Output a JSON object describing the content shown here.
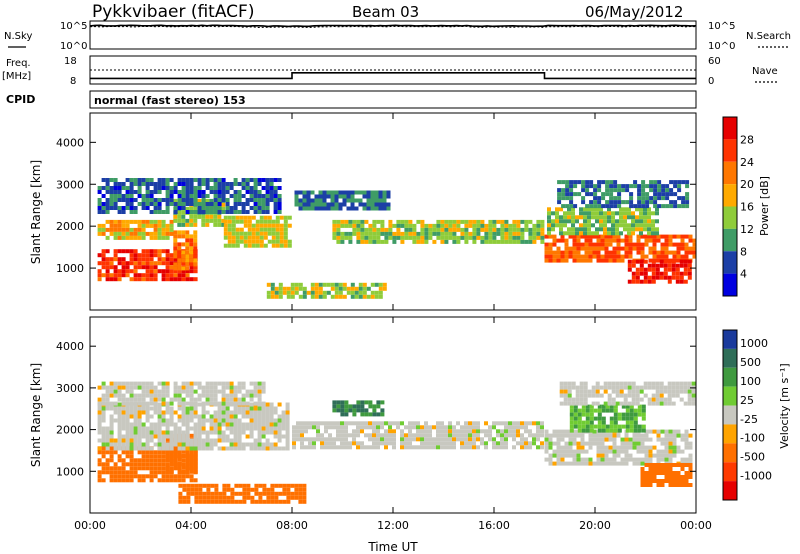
{
  "header": {
    "station": "Pykkvibaer (fitACF)",
    "beam": "Beam 03",
    "date": "06/May/2012"
  },
  "panel_labels": {
    "nsky": "N.Sky",
    "nsearch": "N.Search",
    "freq": "Freq.",
    "freq_unit": "[MHz]",
    "nave": "Nave",
    "cpid": "CPID",
    "cpid_value": "normal (fast stereo) 153"
  },
  "noise_axes": {
    "left_top": "10^5",
    "left_bottom": "10^0",
    "right_top": "10^5",
    "right_bottom": "10^0"
  },
  "freq_axes": {
    "left_top": "18",
    "left_bottom": "8",
    "right_top": "60",
    "right_bottom": "0"
  },
  "power_colorbar": {
    "label": "Power [dB]",
    "ticks": [
      "28",
      "24",
      "20",
      "16",
      "12",
      "8",
      "4"
    ],
    "colors": [
      "#e60000",
      "#ff3300",
      "#ff7700",
      "#ffaa00",
      "#8fcc3a",
      "#3f9c66",
      "#1c3fa6",
      "#0000e0"
    ]
  },
  "velocity_colorbar": {
    "label": "Velocity [m s⁻¹]",
    "ticks": [
      "1000",
      "500",
      "100",
      "25",
      "-25",
      "-100",
      "-500",
      "-1000"
    ],
    "colors": [
      "#1a3a9c",
      "#2f6e58",
      "#3f9a3f",
      "#70cc33",
      "#c8c8c0",
      "#ffa400",
      "#ff7000",
      "#ff3a00",
      "#e60000"
    ]
  },
  "chart_data": [
    {
      "type": "line",
      "title": "N.Sky / N.Search",
      "x_range": [
        "00:00",
        "24:00"
      ],
      "series": [
        {
          "name": "N.Sky",
          "values_log10": [
            4.5,
            4.5,
            4.4,
            4.5,
            4.5,
            4.4,
            4.5,
            4.5
          ]
        },
        {
          "name": "N.Search",
          "values_log10": [
            4.3,
            4.3,
            4.2,
            4.3,
            4.3,
            4.2,
            4.3,
            4.3
          ]
        }
      ]
    },
    {
      "type": "line",
      "title": "Freq. / Nave",
      "series": [
        {
          "name": "Freq.",
          "points": [
            [
              "00:00",
              10.0
            ],
            [
              "08:00",
              10.0
            ],
            [
              "08:00",
              12.0
            ],
            [
              "18:00",
              12.0
            ],
            [
              "18:00",
              10.0
            ],
            [
              "24:00",
              10.0
            ]
          ]
        },
        {
          "name": "Nave",
          "points": [
            [
              "00:00",
              30
            ],
            [
              "24:00",
              30
            ]
          ]
        }
      ]
    },
    {
      "type": "heatmap",
      "title": "Power",
      "ylabel": "Slant Range [km]",
      "yticks": [
        1000,
        2000,
        3000,
        4000
      ],
      "ylim": [
        0,
        4700
      ],
      "xlim": [
        "00:00",
        "24:00"
      ],
      "xticks": [
        "00:00",
        "04:00",
        "08:00",
        "12:00",
        "16:00",
        "20:00",
        "00:00"
      ],
      "colorbar_label": "Power [dB]",
      "regions": [
        {
          "t": [
            0.3,
            4.2
          ],
          "r": [
            750,
            1450
          ],
          "value": 27
        },
        {
          "t": [
            3.3,
            4.2
          ],
          "r": [
            1000,
            1900
          ],
          "value": 22
        },
        {
          "t": [
            0.3,
            3.3
          ],
          "r": [
            1700,
            2150
          ],
          "value": 18
        },
        {
          "t": [
            3.3,
            5.3
          ],
          "r": [
            2000,
            2650
          ],
          "value": 14
        },
        {
          "t": [
            5.3,
            7.9
          ],
          "r": [
            1550,
            2250
          ],
          "value": 16
        },
        {
          "t": [
            0.3,
            7.5
          ],
          "r": [
            2300,
            3150
          ],
          "value": 7
        },
        {
          "t": [
            9.6,
            17.9
          ],
          "r": [
            1650,
            2150
          ],
          "value": 14
        },
        {
          "t": [
            8.1,
            11.9
          ],
          "r": [
            2400,
            2850
          ],
          "value": 8
        },
        {
          "t": [
            18.0,
            23.9
          ],
          "r": [
            1200,
            1800
          ],
          "value": 24
        },
        {
          "t": [
            18.1,
            22.4
          ],
          "r": [
            1800,
            2450
          ],
          "value": 13
        },
        {
          "t": [
            18.5,
            23.7
          ],
          "r": [
            2500,
            3100
          ],
          "value": 8
        },
        {
          "t": [
            7.0,
            11.6
          ],
          "r": [
            300,
            650
          ],
          "value": 14
        },
        {
          "t": [
            21.3,
            23.7
          ],
          "r": [
            700,
            1200
          ],
          "value": 28
        }
      ]
    },
    {
      "type": "heatmap",
      "title": "Velocity",
      "ylabel": "Slant Range [km]",
      "yticks": [
        1000,
        2000,
        3000,
        4000
      ],
      "ylim": [
        0,
        4700
      ],
      "xlim": [
        "00:00",
        "24:00"
      ],
      "xticks": [
        "00:00",
        "04:00",
        "08:00",
        "12:00",
        "16:00",
        "20:00",
        "00:00"
      ],
      "xlabel": "Time UT",
      "colorbar_label": "Velocity [m s⁻¹]",
      "regions": [
        {
          "t": [
            0.3,
            4.2
          ],
          "r": [
            750,
            1600
          ],
          "value": -300
        },
        {
          "t": [
            3.0,
            4.2
          ],
          "r": [
            1000,
            1900
          ],
          "value": -400
        },
        {
          "t": [
            0.3,
            7.9
          ],
          "r": [
            1550,
            2650
          ],
          "value": 0
        },
        {
          "t": [
            0.3,
            6.9
          ],
          "r": [
            2650,
            3150
          ],
          "value": 0
        },
        {
          "t": [
            8.0,
            17.9
          ],
          "r": [
            1600,
            2200
          ],
          "value": 0
        },
        {
          "t": [
            9.6,
            11.6
          ],
          "r": [
            2350,
            2700
          ],
          "value": 500
        },
        {
          "t": [
            3.5,
            8.5
          ],
          "r": [
            300,
            700
          ],
          "value": -150
        },
        {
          "t": [
            18.0,
            23.8
          ],
          "r": [
            1200,
            2000
          ],
          "value": 0
        },
        {
          "t": [
            19.0,
            22.0
          ],
          "r": [
            2000,
            2600
          ],
          "value": 100
        },
        {
          "t": [
            21.8,
            23.8
          ],
          "r": [
            700,
            1200
          ],
          "value": -300
        },
        {
          "t": [
            18.6,
            23.9
          ],
          "r": [
            2600,
            3150
          ],
          "value": 0
        }
      ]
    }
  ],
  "axis_labels": {
    "ylabel": "Slant Range [km]",
    "xlabel": "Time UT"
  }
}
